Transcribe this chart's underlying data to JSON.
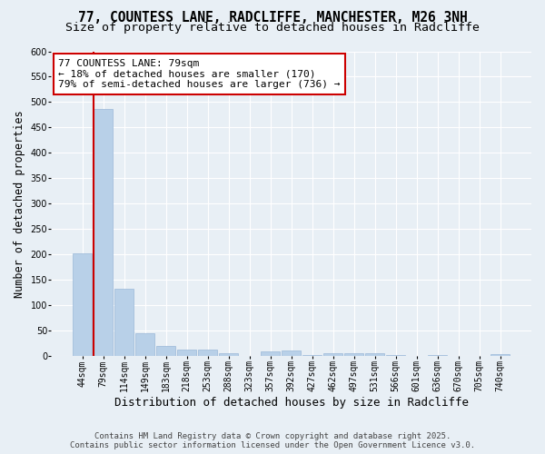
{
  "title_line1": "77, COUNTESS LANE, RADCLIFFE, MANCHESTER, M26 3NH",
  "title_line2": "Size of property relative to detached houses in Radcliffe",
  "xlabel": "Distribution of detached houses by size in Radcliffe",
  "ylabel": "Number of detached properties",
  "footer_line1": "Contains HM Land Registry data © Crown copyright and database right 2025.",
  "footer_line2": "Contains public sector information licensed under the Open Government Licence v3.0.",
  "annotation_line1": "77 COUNTESS LANE: 79sqm",
  "annotation_line2": "← 18% of detached houses are smaller (170)",
  "annotation_line3": "79% of semi-detached houses are larger (736) →",
  "categories": [
    "44sqm",
    "79sqm",
    "114sqm",
    "149sqm",
    "183sqm",
    "218sqm",
    "253sqm",
    "288sqm",
    "323sqm",
    "357sqm",
    "392sqm",
    "427sqm",
    "462sqm",
    "497sqm",
    "531sqm",
    "566sqm",
    "601sqm",
    "636sqm",
    "670sqm",
    "705sqm",
    "740sqm"
  ],
  "bar_values": [
    203,
    487,
    133,
    45,
    20,
    13,
    12,
    5,
    0,
    9,
    11,
    1,
    5,
    5,
    5,
    1,
    0,
    2,
    0,
    0,
    3
  ],
  "bar_color": "#b8d0e8",
  "bar_edge_color": "#9ab8d8",
  "vline_color": "#cc0000",
  "vline_x_index": 1,
  "background_color": "#e8eff5",
  "plot_bg_color": "#e8eff5",
  "grid_color": "#ffffff",
  "ylim": [
    0,
    600
  ],
  "yticks": [
    0,
    50,
    100,
    150,
    200,
    250,
    300,
    350,
    400,
    450,
    500,
    550,
    600
  ],
  "annotation_box_facecolor": "#ffffff",
  "annotation_box_edgecolor": "#cc0000",
  "title_fontsize": 10.5,
  "subtitle_fontsize": 9.5,
  "ylabel_fontsize": 8.5,
  "xlabel_fontsize": 9,
  "tick_fontsize": 7,
  "annotation_fontsize": 8,
  "footer_fontsize": 6.5
}
